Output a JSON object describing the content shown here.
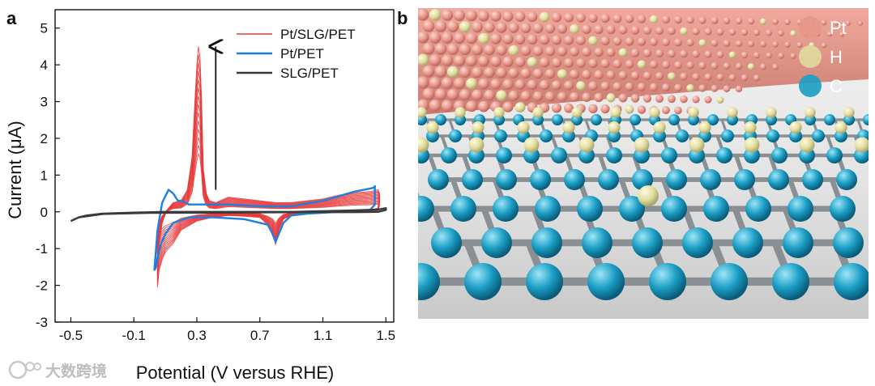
{
  "panel_a": {
    "letter": "a"
  },
  "panel_b": {
    "letter": "b",
    "legend": [
      {
        "label": "Pt",
        "color": "#e8968a"
      },
      {
        "label": "H",
        "color": "#e0dc9e"
      },
      {
        "label": "C",
        "color": "#1b9ec4"
      }
    ]
  },
  "watermark": {
    "text": "大数跨境"
  },
  "chart_data": {
    "type": "line",
    "xlabel": "Potential (V versus RHE)",
    "ylabel": "Current (μA)",
    "xlim": [
      -0.6,
      1.55
    ],
    "ylim": [
      -3,
      5.5
    ],
    "xticks": [
      "-0.5",
      "-0.1",
      "0.3",
      "0.7",
      "1.1",
      "1.5"
    ],
    "yticks": [
      "-3",
      "-2",
      "-1",
      "0",
      "1",
      "2",
      "3",
      "4",
      "5"
    ],
    "legend_position": "top-right",
    "annotation": "arrow indicating increasing current with cycling (Pt/SLG/PET)",
    "series": [
      {
        "name": "Pt/SLG/PET",
        "color": "#e83c3c",
        "cycles": 14,
        "final_cycle": {
          "x": [
            0.05,
            0.08,
            0.11,
            0.15,
            0.2,
            0.24,
            0.27,
            0.29,
            0.3,
            0.31,
            0.32,
            0.33,
            0.34,
            0.36,
            0.38,
            0.42,
            0.5,
            0.6,
            0.7,
            0.8,
            0.9,
            1.0,
            1.1,
            1.2,
            1.3,
            1.4,
            1.45,
            1.46,
            1.45,
            1.4,
            1.3,
            1.2,
            1.1,
            1.0,
            0.9,
            0.85,
            0.82,
            0.8,
            0.78,
            0.75,
            0.7,
            0.6,
            0.5,
            0.4,
            0.3,
            0.2,
            0.15,
            0.12,
            0.1,
            0.08,
            0.06,
            0.05,
            0.05
          ],
          "y": [
            -1.2,
            -0.3,
            0.05,
            0.25,
            0.3,
            0.6,
            1.5,
            3.2,
            4.0,
            4.5,
            4.2,
            3.0,
            1.2,
            0.5,
            0.3,
            0.25,
            0.4,
            0.35,
            0.3,
            0.25,
            0.25,
            0.3,
            0.35,
            0.45,
            0.52,
            0.55,
            0.6,
            0.5,
            0.1,
            0.05,
            0.02,
            0.0,
            -0.02,
            -0.05,
            -0.1,
            -0.2,
            -0.5,
            -0.9,
            -0.55,
            -0.35,
            -0.15,
            -0.12,
            -0.1,
            -0.15,
            -0.25,
            -0.5,
            -0.85,
            -1.0,
            -1.1,
            -1.3,
            -1.6,
            -2.05,
            -1.2
          ]
        }
      },
      {
        "name": "Pt/PET",
        "color": "#1e7fe0",
        "x": [
          0.03,
          0.05,
          0.08,
          0.12,
          0.15,
          0.18,
          0.2,
          0.25,
          0.35,
          0.5,
          0.7,
          0.9,
          1.1,
          1.3,
          1.42,
          1.43,
          1.43,
          1.4,
          1.2,
          1.0,
          0.9,
          0.85,
          0.82,
          0.8,
          0.78,
          0.75,
          0.6,
          0.4,
          0.25,
          0.15,
          0.1,
          0.07,
          0.05,
          0.04,
          0.03
        ],
        "y": [
          -1.6,
          -0.5,
          0.25,
          0.6,
          0.5,
          0.3,
          0.3,
          0.2,
          0.2,
          0.2,
          0.15,
          0.15,
          0.3,
          0.55,
          0.65,
          0.7,
          0.2,
          0.05,
          0.0,
          -0.05,
          -0.1,
          -0.3,
          -0.6,
          -0.82,
          -0.6,
          -0.35,
          -0.2,
          -0.15,
          -0.15,
          -0.3,
          -0.6,
          -0.9,
          -1.25,
          -1.5,
          -1.6
        ]
      },
      {
        "name": "SLG/PET",
        "color": "#3a3a3a",
        "x": [
          -0.5,
          -0.45,
          -0.4,
          -0.3,
          -0.1,
          0.1,
          0.3,
          0.5,
          0.7,
          0.9,
          1.1,
          1.3,
          1.45,
          1.5,
          1.5,
          1.45,
          1.3,
          1.0,
          0.5,
          0.0,
          -0.3,
          -0.45,
          -0.5
        ],
        "y": [
          -0.25,
          -0.15,
          -0.1,
          -0.05,
          -0.02,
          0.0,
          0.0,
          0.0,
          0.0,
          0.0,
          0.02,
          0.04,
          0.06,
          0.1,
          0.05,
          0.0,
          -0.01,
          -0.01,
          -0.02,
          -0.03,
          -0.06,
          -0.15,
          -0.25
        ]
      }
    ]
  }
}
